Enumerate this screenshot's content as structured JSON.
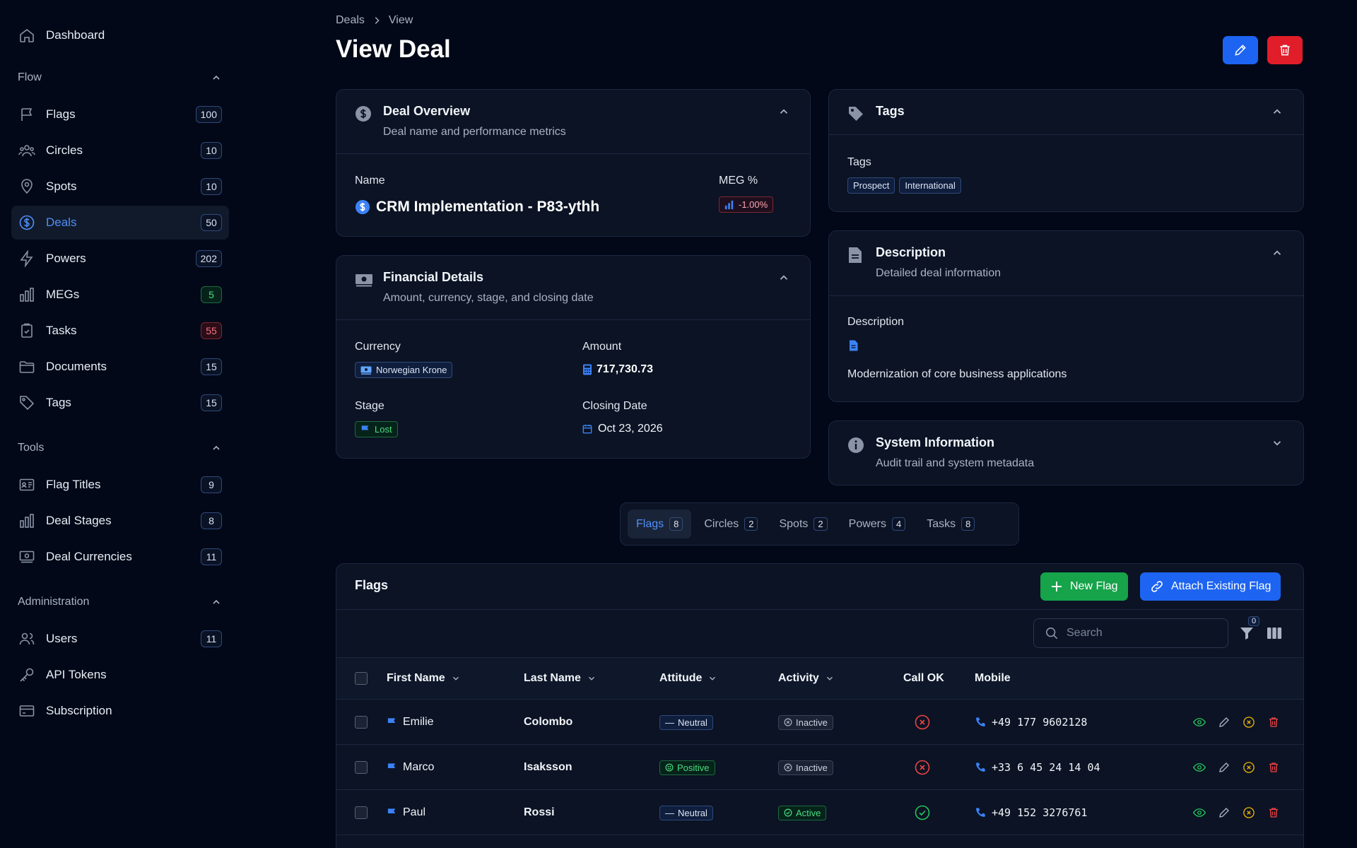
{
  "sidebar": {
    "dashboard": "Dashboard",
    "sections": [
      {
        "title": "Flow",
        "items": [
          {
            "label": "Flags",
            "count": "100",
            "badge": "default"
          },
          {
            "label": "Circles",
            "count": "10",
            "badge": "default"
          },
          {
            "label": "Spots",
            "count": "10",
            "badge": "default"
          },
          {
            "label": "Deals",
            "count": "50",
            "badge": "default",
            "active": true
          },
          {
            "label": "Powers",
            "count": "202",
            "badge": "default"
          },
          {
            "label": "MEGs",
            "count": "5",
            "badge": "green"
          },
          {
            "label": "Tasks",
            "count": "55",
            "badge": "red"
          },
          {
            "label": "Documents",
            "count": "15",
            "badge": "default"
          },
          {
            "label": "Tags",
            "count": "15",
            "badge": "default"
          }
        ]
      },
      {
        "title": "Tools",
        "items": [
          {
            "label": "Flag Titles",
            "count": "9"
          },
          {
            "label": "Deal Stages",
            "count": "8"
          },
          {
            "label": "Deal Currencies",
            "count": "11"
          }
        ]
      },
      {
        "title": "Administration",
        "items": [
          {
            "label": "Users",
            "count": "11"
          },
          {
            "label": "API Tokens",
            "count": ""
          },
          {
            "label": "Subscription",
            "count": ""
          }
        ]
      }
    ]
  },
  "breadcrumb": {
    "root": "Deals",
    "current": "View"
  },
  "page_title": "View Deal",
  "overview": {
    "title": "Deal Overview",
    "subtitle": "Deal name and performance metrics",
    "name_label": "Name",
    "name_value": "CRM Implementation - P83-ythh",
    "meg_label": "MEG %",
    "meg_value": "-1.00%"
  },
  "financial": {
    "title": "Financial Details",
    "subtitle": "Amount, currency, stage, and closing date",
    "currency_label": "Currency",
    "currency_value": "Norwegian Krone",
    "amount_label": "Amount",
    "amount_value": "717,730.73",
    "stage_label": "Stage",
    "stage_value": "Lost",
    "closing_label": "Closing Date",
    "closing_value": "Oct 23, 2026"
  },
  "tags_card": {
    "title": "Tags",
    "label": "Tags",
    "tags": [
      "Prospect",
      "International"
    ]
  },
  "description_card": {
    "title": "Description",
    "subtitle": "Detailed deal information",
    "label": "Description",
    "text": "Modernization of core business applications"
  },
  "system_card": {
    "title": "System Information",
    "subtitle": "Audit trail and system metadata"
  },
  "tabs": [
    {
      "label": "Flags",
      "count": "8",
      "active": true
    },
    {
      "label": "Circles",
      "count": "2"
    },
    {
      "label": "Spots",
      "count": "2"
    },
    {
      "label": "Powers",
      "count": "4"
    },
    {
      "label": "Tasks",
      "count": "8"
    }
  ],
  "flags_table": {
    "title": "Flags",
    "new_button": "New Flag",
    "attach_button": "Attach Existing Flag",
    "search_placeholder": "Search",
    "filter_count": "0",
    "columns": [
      "First Name",
      "Last Name",
      "Attitude",
      "Activity",
      "Call OK",
      "Mobile"
    ],
    "rows": [
      {
        "first": "Emilie",
        "last": "Colombo",
        "attitude": "Neutral",
        "activity": "Inactive",
        "call_ok": false,
        "mobile": "+49 177 9602128"
      },
      {
        "first": "Marco",
        "last": "Isaksson",
        "attitude": "Positive",
        "activity": "Inactive",
        "call_ok": false,
        "mobile": "+33 6 45 24 14 04"
      },
      {
        "first": "Paul",
        "last": "Rossi",
        "attitude": "Neutral",
        "activity": "Active",
        "call_ok": true,
        "mobile": "+49 152 3276761"
      }
    ]
  },
  "colors": {
    "accent": "#1d64f2",
    "danger": "#e11d2a",
    "success": "#16a34a",
    "background": "#020817",
    "card": "#0b1324"
  }
}
